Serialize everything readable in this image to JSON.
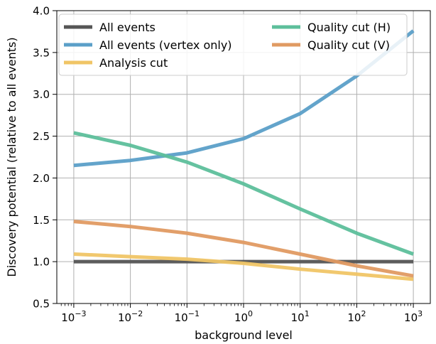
{
  "chart_data": {
    "type": "line",
    "title": "",
    "xlabel": "background level",
    "ylabel": "Discovery potential (relative to all events)",
    "xscale": "log",
    "xlim_exp": [
      -3.3,
      3.3
    ],
    "ylim": [
      0.5,
      4.0
    ],
    "grid": true,
    "legend_placement": "top",
    "x_exponents": [
      -3,
      -2,
      -1,
      0,
      1,
      2,
      3
    ],
    "x_tick_base": "10",
    "y_ticks": [
      "0.5",
      "1.0",
      "1.5",
      "2.0",
      "2.5",
      "3.0",
      "3.5",
      "4.0"
    ],
    "x": [
      0.001,
      0.01,
      0.1,
      1,
      10,
      100,
      1000
    ],
    "series": [
      {
        "name": "All events",
        "color": "#555555",
        "values": [
          1.0,
          1.0,
          1.0,
          1.0,
          1.0,
          1.0,
          1.0
        ]
      },
      {
        "name": "All events (vertex only)",
        "color": "#5b9fc8",
        "values": [
          2.15,
          2.21,
          2.3,
          2.47,
          2.77,
          3.22,
          3.76
        ]
      },
      {
        "name": "Analysis cut",
        "color": "#f0c566",
        "values": [
          1.09,
          1.06,
          1.03,
          0.98,
          0.91,
          0.85,
          0.79
        ]
      },
      {
        "name": "Quality cut (H)",
        "color": "#5dbf9b",
        "values": [
          2.54,
          2.39,
          2.19,
          1.93,
          1.63,
          1.34,
          1.09
        ]
      },
      {
        "name": "Quality cut (V)",
        "color": "#e09a62",
        "values": [
          1.48,
          1.42,
          1.34,
          1.23,
          1.09,
          0.95,
          0.83
        ]
      }
    ]
  }
}
